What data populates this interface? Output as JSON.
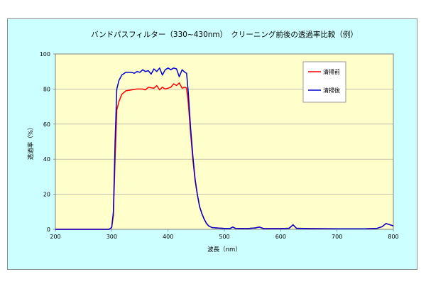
{
  "chart_data": {
    "type": "line",
    "title": "バンドパスフィルター（330~430nm）　クリーニング前後の透過率比較（例）",
    "xlabel": "波長（nm）",
    "ylabel": "透過率（%）",
    "xlim": [
      200,
      800
    ],
    "ylim": [
      0,
      100
    ],
    "x_ticks": [
      "200",
      "300",
      "400",
      "500",
      "600",
      "700",
      "800"
    ],
    "y_ticks": [
      "0",
      "20",
      "40",
      "60",
      "80",
      "100"
    ],
    "grid": "horizontal",
    "legend_position": "top-right",
    "plot_background": "#ffffcc",
    "frame_background": "#ccffff",
    "series": [
      {
        "name": "清掃前",
        "color": "#ff0000",
        "points": [
          [
            200,
            0
          ],
          [
            295,
            0
          ],
          [
            300,
            1
          ],
          [
            303,
            8
          ],
          [
            306,
            40
          ],
          [
            309,
            68
          ],
          [
            313,
            73
          ],
          [
            318,
            77
          ],
          [
            325,
            79
          ],
          [
            335,
            79.5
          ],
          [
            345,
            80
          ],
          [
            355,
            80
          ],
          [
            360,
            79.5
          ],
          [
            365,
            81
          ],
          [
            375,
            80.5
          ],
          [
            380,
            82
          ],
          [
            385,
            79.5
          ],
          [
            390,
            81
          ],
          [
            395,
            80
          ],
          [
            400,
            80.5
          ],
          [
            405,
            81
          ],
          [
            410,
            83
          ],
          [
            415,
            82
          ],
          [
            420,
            83.5
          ],
          [
            425,
            80.5
          ],
          [
            430,
            81
          ],
          [
            433,
            80.5
          ],
          [
            436,
            72
          ],
          [
            440,
            55
          ],
          [
            444,
            40
          ],
          [
            448,
            28
          ],
          [
            452,
            20
          ],
          [
            456,
            13
          ],
          [
            460,
            9
          ],
          [
            464,
            6
          ],
          [
            468,
            3.5
          ],
          [
            472,
            2
          ],
          [
            478,
            1
          ],
          [
            485,
            0.8
          ],
          [
            500,
            0.5
          ],
          [
            510,
            0.5
          ],
          [
            515,
            1.3
          ],
          [
            520,
            0.5
          ],
          [
            540,
            0.4
          ],
          [
            555,
            0.8
          ],
          [
            562,
            1.3
          ],
          [
            570,
            0.4
          ],
          [
            600,
            0.4
          ],
          [
            615,
            0.6
          ],
          [
            622,
            2.6
          ],
          [
            628,
            0.6
          ],
          [
            650,
            0.4
          ],
          [
            700,
            0.3
          ],
          [
            750,
            0.3
          ],
          [
            770,
            0.5
          ],
          [
            780,
            1.5
          ],
          [
            787,
            3.3
          ],
          [
            795,
            2.5
          ],
          [
            800,
            2
          ]
        ]
      },
      {
        "name": "清掃後",
        "color": "#0000cc",
        "points": [
          [
            200,
            0
          ],
          [
            295,
            0
          ],
          [
            300,
            1
          ],
          [
            303,
            10
          ],
          [
            306,
            50
          ],
          [
            309,
            80
          ],
          [
            313,
            85
          ],
          [
            318,
            88
          ],
          [
            325,
            89.5
          ],
          [
            335,
            89.5
          ],
          [
            340,
            89
          ],
          [
            345,
            90
          ],
          [
            350,
            89.5
          ],
          [
            355,
            91
          ],
          [
            360,
            90
          ],
          [
            365,
            90.5
          ],
          [
            370,
            88.5
          ],
          [
            375,
            91.5
          ],
          [
            380,
            90
          ],
          [
            385,
            92
          ],
          [
            390,
            88
          ],
          [
            395,
            91
          ],
          [
            400,
            92
          ],
          [
            405,
            91
          ],
          [
            410,
            92
          ],
          [
            415,
            91.5
          ],
          [
            420,
            87
          ],
          [
            425,
            91
          ],
          [
            430,
            89.5
          ],
          [
            433,
            89
          ],
          [
            436,
            78
          ],
          [
            440,
            58
          ],
          [
            444,
            42
          ],
          [
            448,
            29
          ],
          [
            452,
            20
          ],
          [
            456,
            13
          ],
          [
            460,
            9
          ],
          [
            464,
            6
          ],
          [
            468,
            3.5
          ],
          [
            472,
            2
          ],
          [
            478,
            1
          ],
          [
            485,
            0.8
          ],
          [
            500,
            0.5
          ],
          [
            510,
            0.5
          ],
          [
            515,
            1.3
          ],
          [
            520,
            0.5
          ],
          [
            540,
            0.4
          ],
          [
            555,
            0.8
          ],
          [
            562,
            1.3
          ],
          [
            570,
            0.4
          ],
          [
            600,
            0.4
          ],
          [
            615,
            0.6
          ],
          [
            622,
            2.6
          ],
          [
            628,
            0.6
          ],
          [
            650,
            0.4
          ],
          [
            700,
            0.3
          ],
          [
            750,
            0.3
          ],
          [
            770,
            0.5
          ],
          [
            780,
            1.5
          ],
          [
            787,
            3.3
          ],
          [
            795,
            2.5
          ],
          [
            800,
            2
          ]
        ]
      }
    ]
  }
}
